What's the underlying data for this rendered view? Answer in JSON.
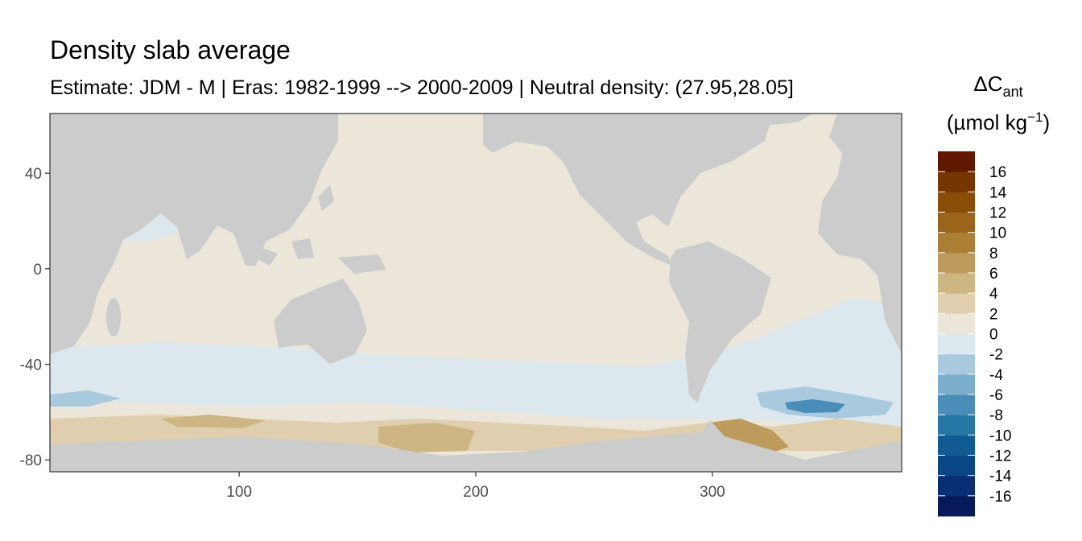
{
  "chart_data": {
    "type": "map",
    "title": "Density slab average",
    "subtitle": "Estimate: JDM - M | Eras: 1982-1999 --> 2000-2009 | Neutral density: (27.95,28.05]",
    "xlim": [
      20,
      380
    ],
    "ylim": [
      -85,
      65
    ],
    "xticks": [
      100,
      200,
      300
    ],
    "yticks": [
      40,
      0,
      -40,
      -80
    ],
    "legend": {
      "title": "ΔC",
      "title_sub": "ant",
      "unit": "(µmol kg",
      "unit_sup": "−1",
      "unit_end": ")",
      "limits": [
        -18,
        18
      ],
      "breaks": [
        -18,
        -16,
        -14,
        -12,
        -10,
        -8,
        -6,
        -4,
        -2,
        0,
        2,
        4,
        6,
        8,
        10,
        12,
        14,
        16,
        18
      ],
      "colors": [
        "#061a5c",
        "#0a2e73",
        "#0a4585",
        "#105b93",
        "#2676a6",
        "#4a8db9",
        "#7aaecb",
        "#a9c9de",
        "#dce7ee",
        "#ece6da",
        "#dfcfae",
        "#cdb584",
        "#bc9b5d",
        "#ab7f34",
        "#9a651a",
        "#8a4d08",
        "#763602",
        "#601800"
      ],
      "ticks": [
        16,
        14,
        12,
        10,
        8,
        6,
        4,
        2,
        0,
        -2,
        -4,
        -6,
        -8,
        -10,
        -12,
        -14,
        -16
      ]
    }
  }
}
